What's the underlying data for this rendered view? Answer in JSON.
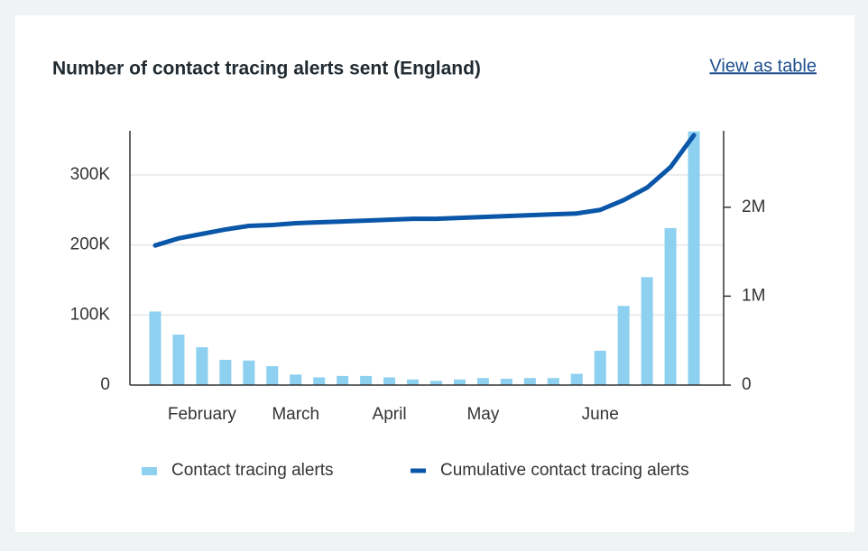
{
  "link": "View as table",
  "chart_data": {
    "type": "bar",
    "title": "Number of contact tracing alerts sent (England)",
    "categories": [
      null,
      null,
      "February",
      null,
      null,
      null,
      "March",
      null,
      null,
      null,
      "April",
      null,
      null,
      null,
      "May",
      null,
      null,
      null,
      null,
      "June",
      null,
      null,
      null,
      null
    ],
    "series": [
      {
        "name": "Contact tracing alerts",
        "type": "bar",
        "color": "#8dd0ef",
        "values": [
          105000,
          72000,
          54000,
          36000,
          35000,
          27000,
          15000,
          11000,
          13000,
          13000,
          11000,
          8000,
          6000,
          8000,
          10000,
          9000,
          10000,
          10000,
          16000,
          49000,
          113000,
          154000,
          224000,
          362000
        ]
      },
      {
        "name": "Cumulative contact tracing alerts",
        "type": "line",
        "axis": "y2",
        "color": "#0a56a8",
        "values": [
          1570000,
          1650000,
          1700000,
          1750000,
          1790000,
          1800000,
          1820000,
          1830000,
          1840000,
          1850000,
          1860000,
          1870000,
          1870000,
          1880000,
          1890000,
          1900000,
          1910000,
          1920000,
          1930000,
          1970000,
          2080000,
          2220000,
          2450000,
          2810000
        ]
      }
    ],
    "ylim": [
      0,
      363000
    ],
    "yticks": [
      0,
      {
        "value": 100000,
        "label": "100K"
      },
      {
        "value": 200000,
        "label": "200K"
      },
      {
        "value": 300000,
        "label": "300K"
      }
    ],
    "y2lim": [
      0,
      2860000
    ],
    "y2ticks": [
      0,
      {
        "value": 1000000,
        "label": "1M"
      },
      {
        "value": 2000000,
        "label": "2M"
      }
    ],
    "grid": true
  }
}
